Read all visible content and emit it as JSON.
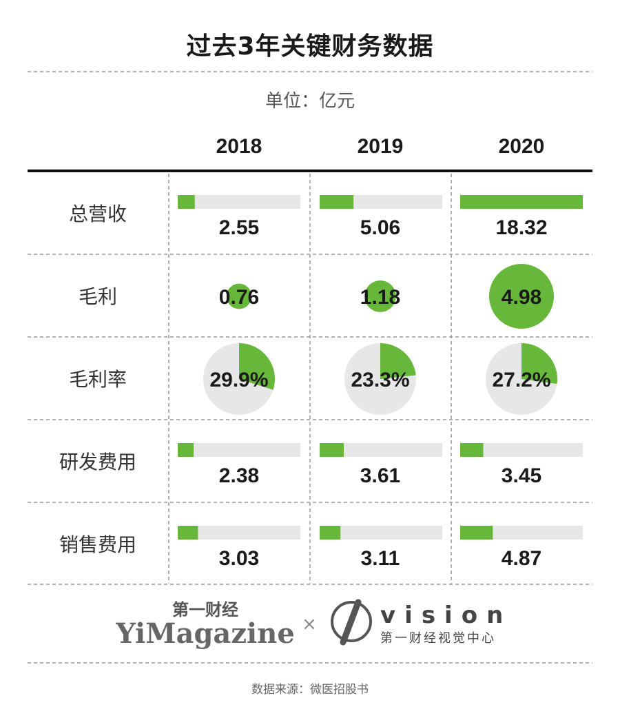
{
  "title": "过去3年关键财务数据",
  "unit": "单位：亿元",
  "source": "数据来源：微医招股书",
  "colors": {
    "accent": "#67b83a",
    "track": "#e7e7e7",
    "text": "#1a1a1a"
  },
  "logos": {
    "yimagazine_cn": "第一财经",
    "yimagazine_en": "YiMagazine",
    "times": "×",
    "vision_en": "vision",
    "vision_cn": "第一财经视觉中心"
  },
  "chart_data": {
    "type": "table",
    "title": "过去3年关键财务数据",
    "unit": "亿元",
    "years": [
      "2018",
      "2019",
      "2020"
    ],
    "rows": [
      {
        "label": "总营收",
        "kind": "bar",
        "values": [
          2.55,
          5.06,
          18.32
        ],
        "labels": [
          "2.55",
          "5.06",
          "18.32"
        ],
        "max": 18.32
      },
      {
        "label": "毛利",
        "kind": "bubble",
        "values": [
          0.76,
          1.18,
          4.98
        ],
        "labels": [
          "0.76",
          "1.18",
          "4.98"
        ]
      },
      {
        "label": "毛利率",
        "kind": "pie",
        "values": [
          29.9,
          23.3,
          27.2
        ],
        "labels": [
          "29.9%",
          "23.3%",
          "27.2%"
        ]
      },
      {
        "label": "研发费用",
        "kind": "bar",
        "values": [
          2.38,
          3.61,
          3.45
        ],
        "labels": [
          "2.38",
          "3.61",
          "3.45"
        ],
        "max": 18.32
      },
      {
        "label": "销售费用",
        "kind": "bar",
        "values": [
          3.03,
          3.11,
          4.87
        ],
        "labels": [
          "3.03",
          "3.11",
          "4.87"
        ],
        "max": 18.32
      }
    ]
  }
}
